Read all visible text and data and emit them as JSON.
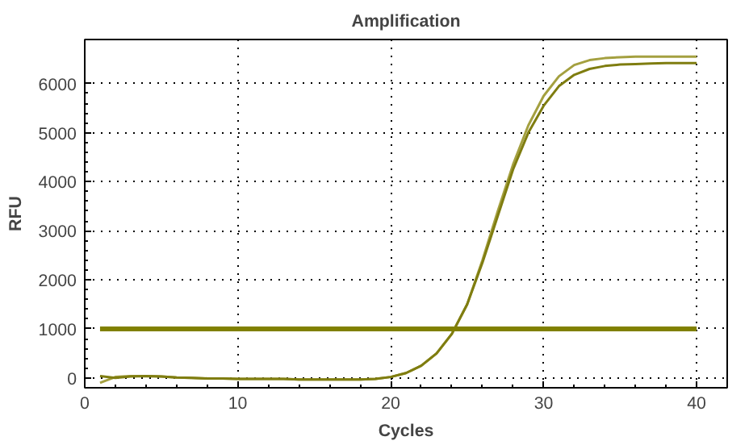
{
  "chart_data": {
    "type": "line",
    "title": "Amplification",
    "xlabel": "Cycles",
    "ylabel": "RFU",
    "x": [
      1,
      2,
      3,
      4,
      5,
      6,
      7,
      8,
      9,
      10,
      11,
      12,
      13,
      14,
      15,
      16,
      17,
      18,
      19,
      20,
      21,
      22,
      23,
      24,
      25,
      26,
      27,
      28,
      29,
      30,
      31,
      32,
      33,
      34,
      35,
      36,
      37,
      38,
      39,
      40
    ],
    "series": [
      {
        "color": "#a4a040",
        "values": [
          -100,
          20,
          40,
          40,
          30,
          10,
          0,
          -10,
          -10,
          -20,
          -20,
          -20,
          -20,
          -30,
          -30,
          -30,
          -30,
          -30,
          -20,
          20,
          100,
          250,
          500,
          900,
          1500,
          2400,
          3400,
          4350,
          5150,
          5750,
          6150,
          6380,
          6480,
          6520,
          6540,
          6550,
          6550,
          6550,
          6550,
          6550
        ]
      },
      {
        "color": "#7f7d10",
        "values": [
          40,
          0,
          30,
          40,
          30,
          10,
          0,
          -10,
          -10,
          -20,
          -20,
          -20,
          -20,
          -30,
          -30,
          -30,
          -30,
          -30,
          -20,
          20,
          100,
          250,
          500,
          900,
          1500,
          2350,
          3300,
          4250,
          5000,
          5550,
          5950,
          6180,
          6300,
          6360,
          6390,
          6400,
          6410,
          6420,
          6420,
          6420
        ]
      }
    ],
    "xlim": [
      0,
      42
    ],
    "xticks": [
      0,
      10,
      20,
      30,
      40
    ],
    "ylim": [
      -200,
      6900
    ],
    "yticks": [
      0,
      1000,
      2000,
      3000,
      4000,
      5000,
      6000
    ],
    "ref_lines": [
      {
        "axis": "y",
        "value": 1000,
        "color": "#808000"
      }
    ],
    "grid": true,
    "marker": "none",
    "line_style": "solid"
  }
}
